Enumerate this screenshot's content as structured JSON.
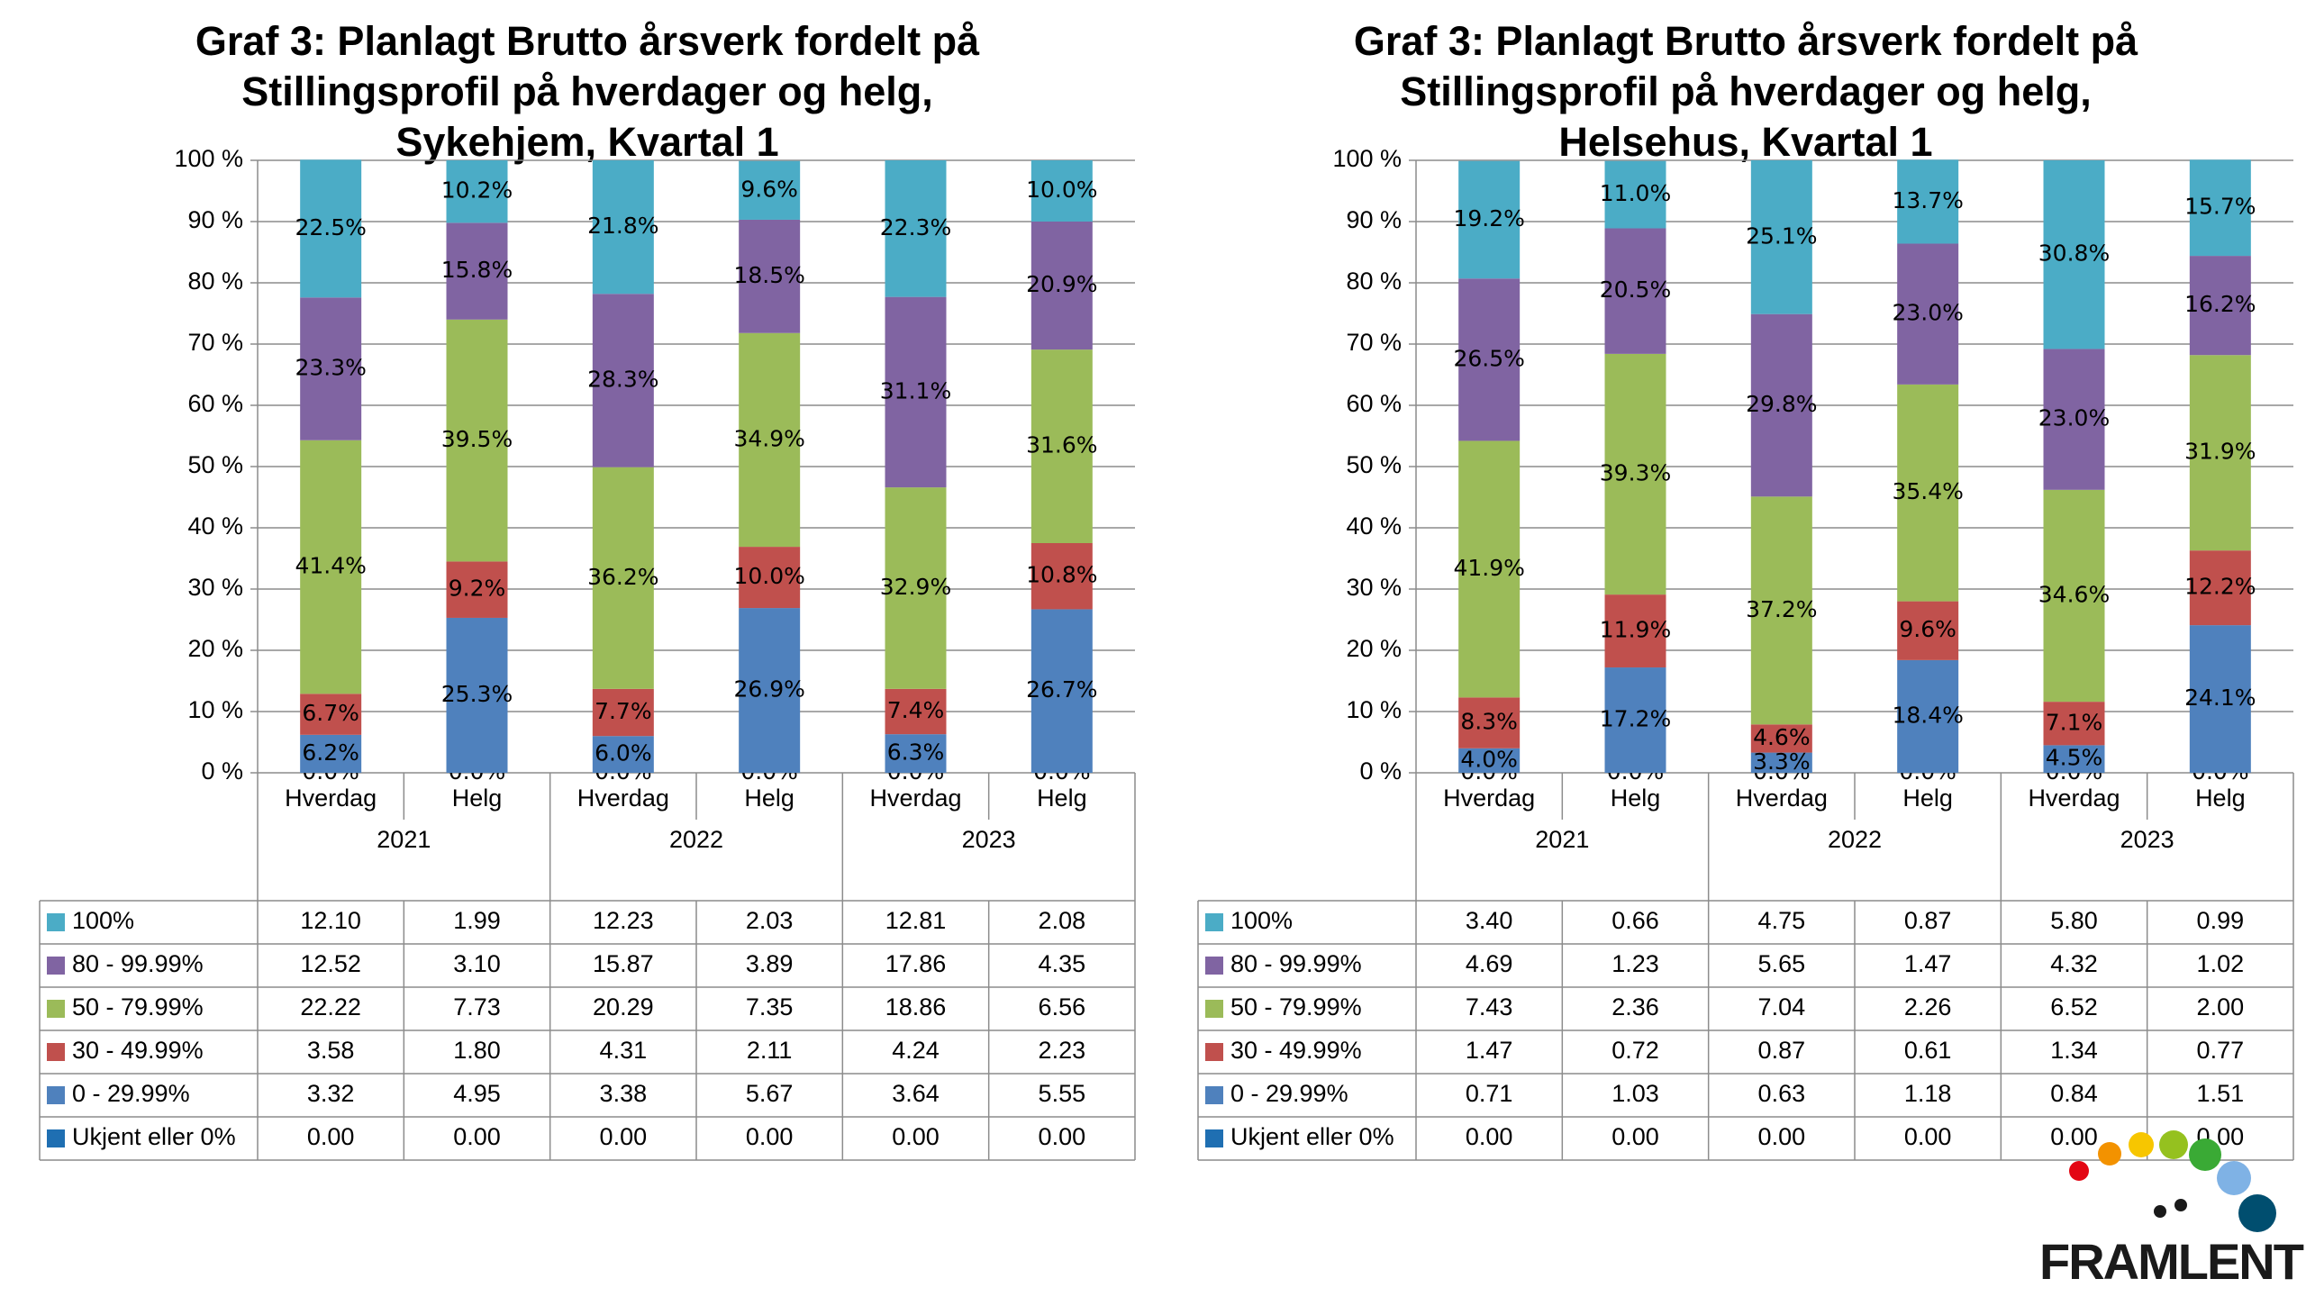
{
  "legend_items": [
    {
      "label": "100%",
      "color": "#4BACC6"
    },
    {
      "label": "80 - 99.99%",
      "color": "#8064A2"
    },
    {
      "label": "50 - 79.99%",
      "color": "#9BBB59"
    },
    {
      "label": "30 - 49.99%",
      "color": "#C0504D"
    },
    {
      "label": "0 - 29.99%",
      "color": "#4F81BD"
    },
    {
      "label": "Ukjent eller 0%",
      "color": "#1F6FB2"
    }
  ],
  "chart_data": [
    {
      "type": "bar",
      "stacked": true,
      "title_lines": [
        "Graf 3: Planlagt Brutto årsverk fordelt på",
        "Stillingsprofil på hverdager og helg,",
        "Sykehjem, Kvartal 1"
      ],
      "y_ticks": [
        "0 %",
        "10 %",
        "20 %",
        "30 %",
        "40 %",
        "50 %",
        "60 %",
        "70 %",
        "80 %",
        "90 %",
        "100 %"
      ],
      "ylim": [
        0,
        100
      ],
      "grid": true,
      "legend": "table-below",
      "categories": [
        "Hverdag",
        "Helg",
        "Hverdag",
        "Helg",
        "Hverdag",
        "Helg"
      ],
      "groups": [
        "2021",
        "2022",
        "2023"
      ],
      "series": [
        {
          "name": "Ukjent eller 0%",
          "values": [
            0.0,
            0.0,
            0.0,
            0.0,
            0.0,
            0.0
          ],
          "labels": [
            "0.0%",
            "0.0%",
            "0.0%",
            "0.0%",
            "0.0%",
            "0.0%"
          ],
          "table": [
            "0.00",
            "0.00",
            "0.00",
            "0.00",
            "0.00",
            "0.00"
          ]
        },
        {
          "name": "0 - 29.99%",
          "values": [
            6.2,
            25.3,
            6.0,
            26.9,
            6.3,
            26.7
          ],
          "labels": [
            "6.2%",
            "25.3%",
            "6.0%",
            "26.9%",
            "6.3%",
            "26.7%"
          ],
          "table": [
            "3.32",
            "4.95",
            "3.38",
            "5.67",
            "3.64",
            "5.55"
          ]
        },
        {
          "name": "30 - 49.99%",
          "values": [
            6.7,
            9.2,
            7.7,
            10.0,
            7.4,
            10.8
          ],
          "labels": [
            "6.7%",
            "9.2%",
            "7.7%",
            "10.0%",
            "7.4%",
            "10.8%"
          ],
          "table": [
            "3.58",
            "1.80",
            "4.31",
            "2.11",
            "4.24",
            "2.23"
          ]
        },
        {
          "name": "50 - 79.99%",
          "values": [
            41.4,
            39.5,
            36.2,
            34.9,
            32.9,
            31.6
          ],
          "labels": [
            "41.4%",
            "39.5%",
            "36.2%",
            "34.9%",
            "32.9%",
            "31.6%"
          ],
          "table": [
            "22.22",
            "7.73",
            "20.29",
            "7.35",
            "18.86",
            "6.56"
          ]
        },
        {
          "name": "80 - 99.99%",
          "values": [
            23.3,
            15.8,
            28.3,
            18.5,
            31.1,
            20.9
          ],
          "labels": [
            "23.3%",
            "15.8%",
            "28.3%",
            "18.5%",
            "31.1%",
            "20.9%"
          ],
          "table": [
            "12.52",
            "3.10",
            "15.87",
            "3.89",
            "17.86",
            "4.35"
          ]
        },
        {
          "name": "100%",
          "values": [
            22.5,
            10.2,
            21.8,
            9.6,
            22.3,
            10.0
          ],
          "labels": [
            "22.5%",
            "10.2%",
            "21.8%",
            "9.6%",
            "22.3%",
            "10.0%"
          ],
          "table": [
            "12.10",
            "1.99",
            "12.23",
            "2.03",
            "12.81",
            "2.08"
          ]
        }
      ]
    },
    {
      "type": "bar",
      "stacked": true,
      "title_lines": [
        "Graf 3: Planlagt Brutto årsverk fordelt på",
        "Stillingsprofil på hverdager og helg,",
        "Helsehus, Kvartal 1"
      ],
      "y_ticks": [
        "0 %",
        "10 %",
        "20 %",
        "30 %",
        "40 %",
        "50 %",
        "60 %",
        "70 %",
        "80 %",
        "90 %",
        "100 %"
      ],
      "ylim": [
        0,
        100
      ],
      "grid": true,
      "legend": "table-below",
      "categories": [
        "Hverdag",
        "Helg",
        "Hverdag",
        "Helg",
        "Hverdag",
        "Helg"
      ],
      "groups": [
        "2021",
        "2022",
        "2023"
      ],
      "series": [
        {
          "name": "Ukjent eller 0%",
          "values": [
            0.0,
            0.0,
            0.0,
            0.0,
            0.0,
            0.0
          ],
          "labels": [
            "0.0%",
            "0.0%",
            "0.0%",
            "0.0%",
            "0.0%",
            "0.0%"
          ],
          "table": [
            "0.00",
            "0.00",
            "0.00",
            "0.00",
            "0.00",
            "0.00"
          ]
        },
        {
          "name": "0 - 29.99%",
          "values": [
            4.0,
            17.2,
            3.3,
            18.4,
            4.5,
            24.1
          ],
          "labels": [
            "4.0%",
            "17.2%",
            "3.3%",
            "18.4%",
            "4.5%",
            "24.1%"
          ],
          "table": [
            "0.71",
            "1.03",
            "0.63",
            "1.18",
            "0.84",
            "1.51"
          ]
        },
        {
          "name": "30 - 49.99%",
          "values": [
            8.3,
            11.9,
            4.6,
            9.6,
            7.1,
            12.2
          ],
          "labels": [
            "8.3%",
            "11.9%",
            "4.6%",
            "9.6%",
            "7.1%",
            "12.2%"
          ],
          "table": [
            "1.47",
            "0.72",
            "0.87",
            "0.61",
            "1.34",
            "0.77"
          ]
        },
        {
          "name": "50 - 79.99%",
          "values": [
            41.9,
            39.3,
            37.2,
            35.4,
            34.6,
            31.9
          ],
          "labels": [
            "41.9%",
            "39.3%",
            "37.2%",
            "35.4%",
            "34.6%",
            "31.9%"
          ],
          "table": [
            "7.43",
            "2.36",
            "7.04",
            "2.26",
            "6.52",
            "2.00"
          ]
        },
        {
          "name": "80 - 99.99%",
          "values": [
            26.5,
            20.5,
            29.8,
            23.0,
            23.0,
            16.2
          ],
          "labels": [
            "26.5%",
            "20.5%",
            "29.8%",
            "23.0%",
            "23.0%",
            "16.2%"
          ],
          "table": [
            "4.69",
            "1.23",
            "5.65",
            "1.47",
            "4.32",
            "1.02"
          ]
        },
        {
          "name": "100%",
          "values": [
            19.2,
            11.0,
            25.1,
            13.7,
            30.8,
            15.7
          ],
          "labels": [
            "19.2%",
            "11.0%",
            "25.1%",
            "13.7%",
            "30.8%",
            "15.7%"
          ],
          "table": [
            "3.40",
            "0.66",
            "4.75",
            "0.87",
            "5.80",
            "0.99"
          ]
        }
      ]
    }
  ],
  "logo": {
    "text": "FRAMLENT",
    "dot_colors": [
      "#E30613",
      "#F39200",
      "#F7C600",
      "#95C11F",
      "#3AAA35",
      "#7FB2E5",
      "#004E6F"
    ]
  }
}
